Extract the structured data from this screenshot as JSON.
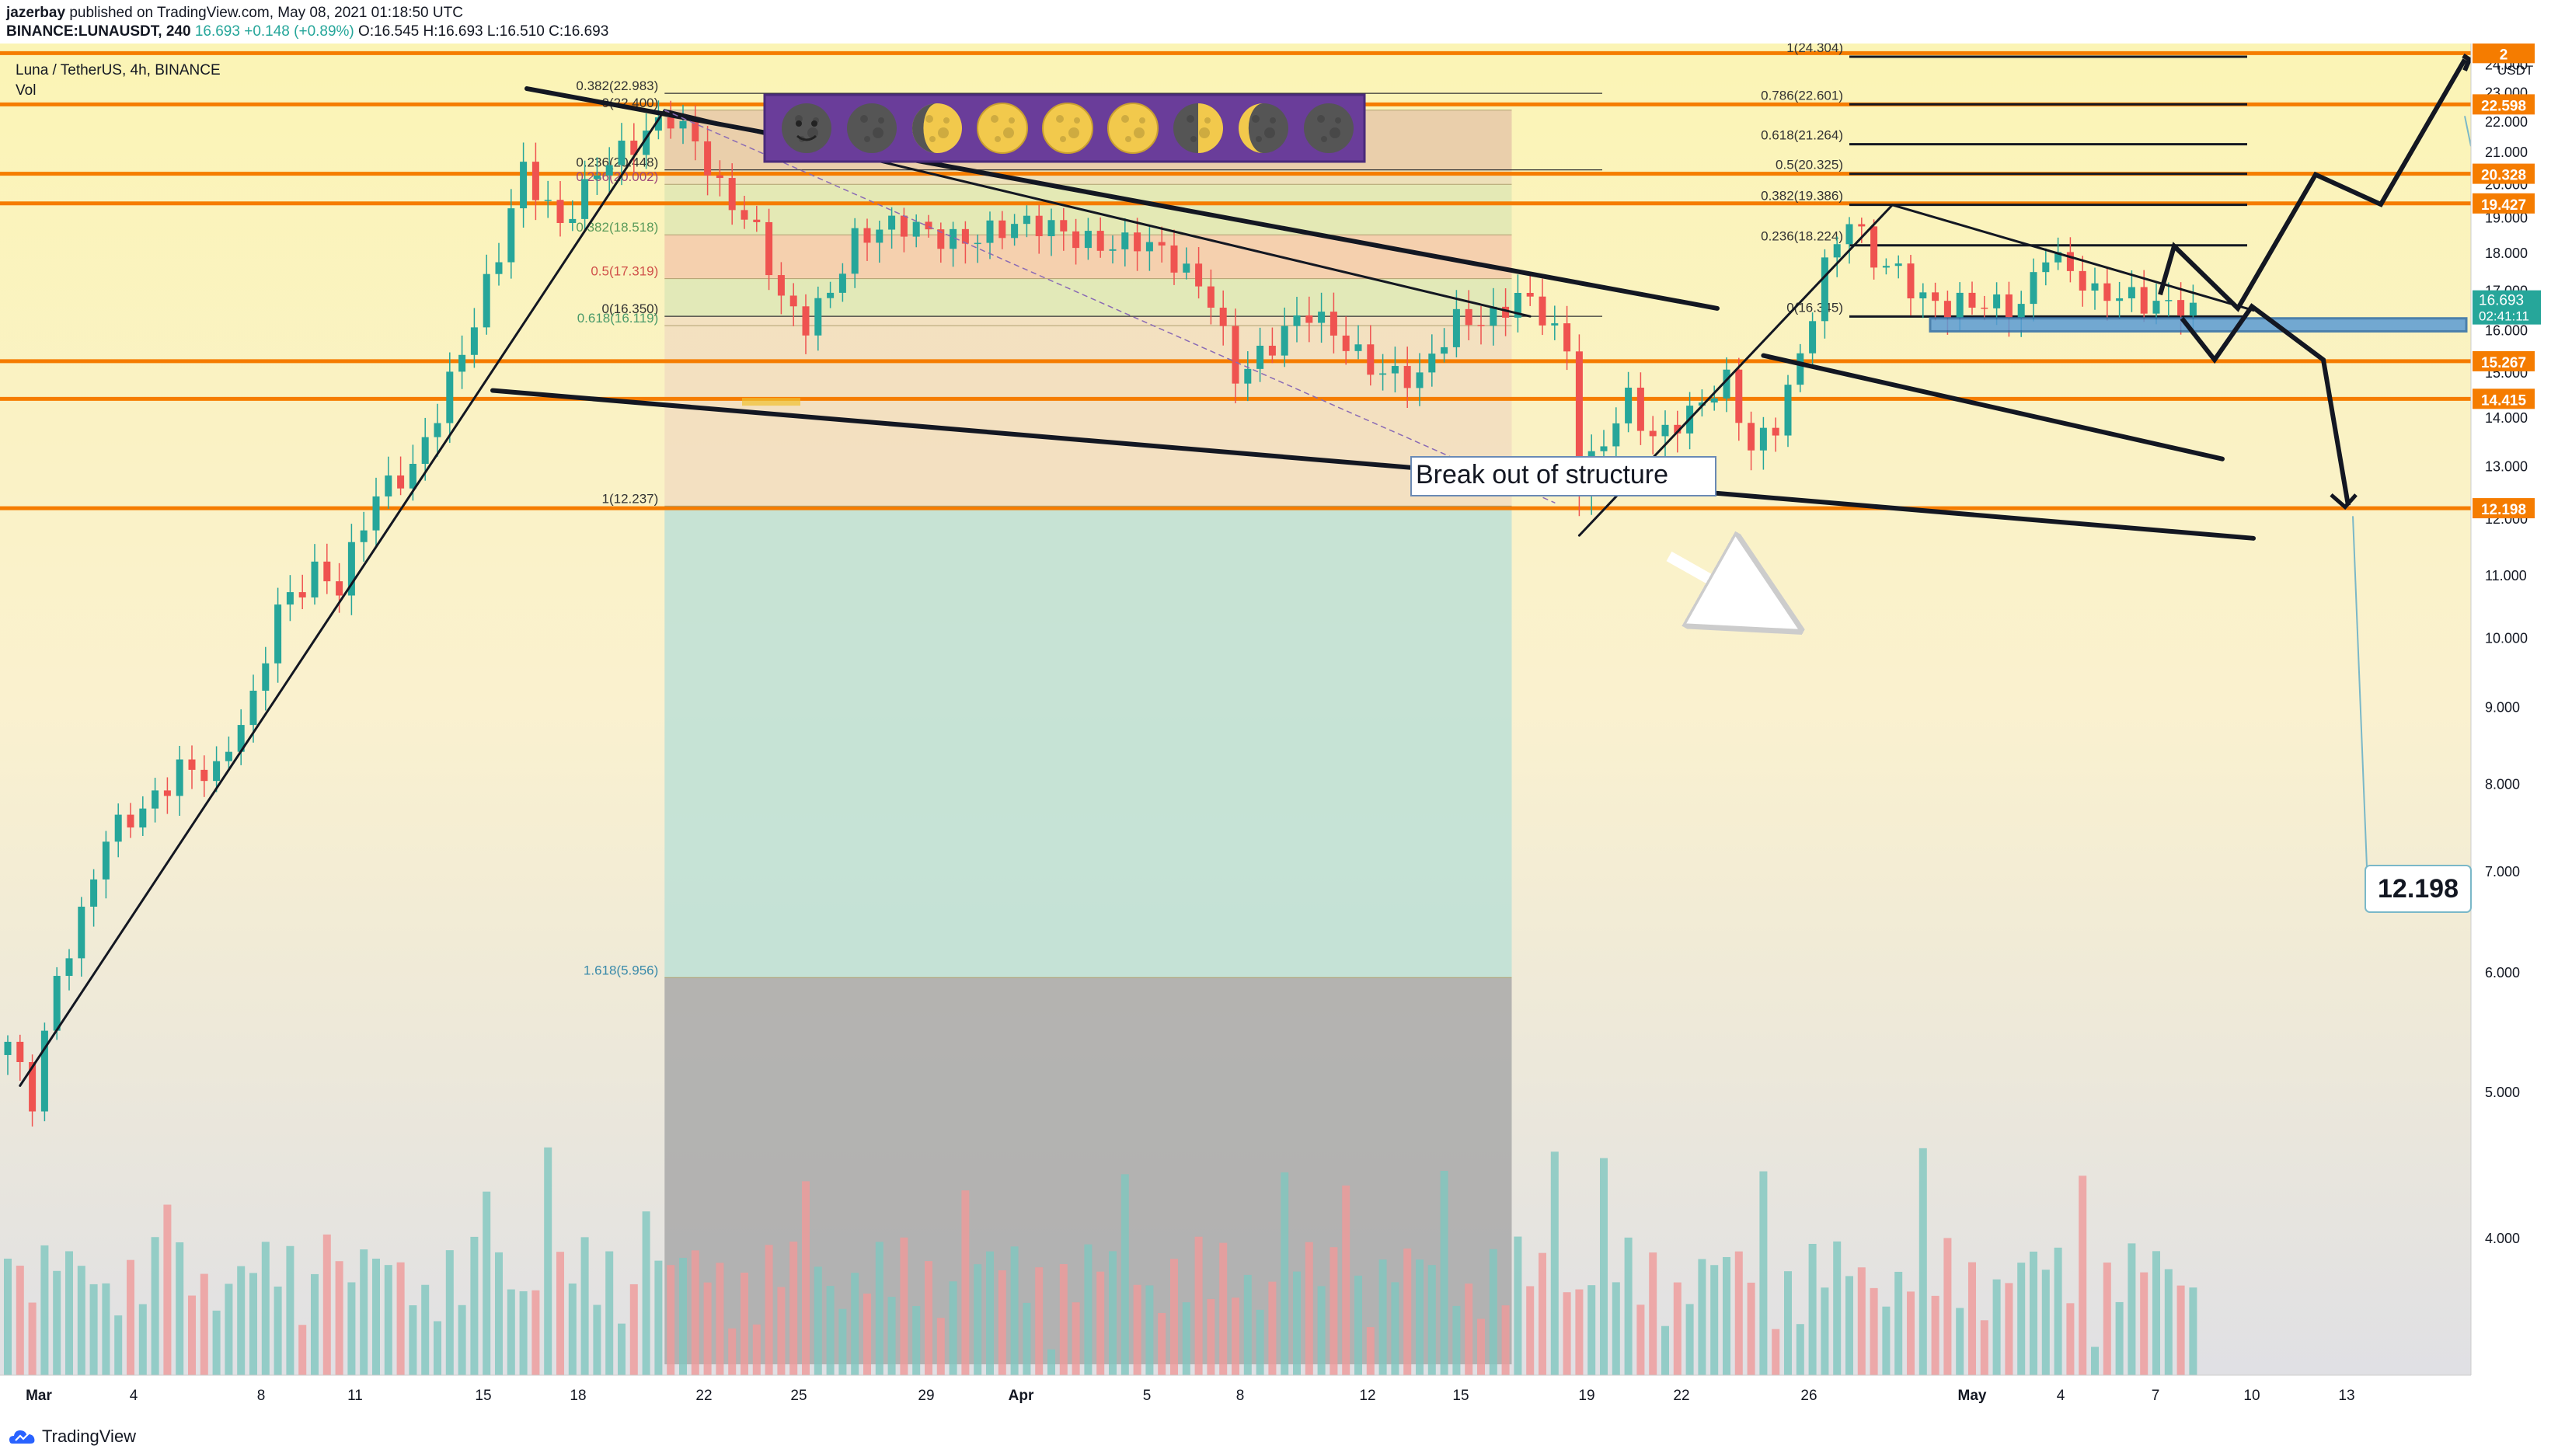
{
  "header": {
    "publisher": "jazerbay",
    "published_text": "published on TradingView.com, May 08, 2021 01:18:50 UTC",
    "symbol_line": "BINANCE:LUNAUSDT, 240",
    "last": "16.693",
    "change": "+0.148 (+0.89%)",
    "ohlc": {
      "o": "O:16.545",
      "h": "H:16.693",
      "l": "L:16.510",
      "c": "C:16.693"
    }
  },
  "legend": {
    "title": "Luna / TetherUS, 4h, BINANCE",
    "vol": "Vol"
  },
  "price_axis": {
    "currency": "USDT",
    "ticks": [
      "24.000",
      "23.000",
      "22.000",
      "21.000",
      "20.000",
      "19.000",
      "18.000",
      "17.000",
      "16.000",
      "15.000",
      "14.000",
      "13.000",
      "12.000",
      "11.000",
      "10.000",
      "9.000",
      "8.000",
      "7.000",
      "6.000",
      "5.000",
      "4.000"
    ],
    "last_price": "16.693",
    "countdown": "02:41:11"
  },
  "time_axis": {
    "ticks": [
      "Mar",
      "4",
      "8",
      "11",
      "15",
      "18",
      "22",
      "25",
      "29",
      "Apr",
      "5",
      "8",
      "12",
      "15",
      "19",
      "22",
      "26",
      "May",
      "4",
      "7",
      "10",
      "13"
    ]
  },
  "levels": [
    {
      "price": 24.44,
      "label": "2"
    },
    {
      "price": 22.598,
      "label": "22.598"
    },
    {
      "price": 20.328,
      "label": "20.328"
    },
    {
      "price": 19.427,
      "label": "19.427"
    },
    {
      "price": 15.267,
      "label": "15.267"
    },
    {
      "price": 14.415,
      "label": "14.415"
    },
    {
      "price": 12.198,
      "label": "12.198"
    }
  ],
  "fib_left": [
    {
      "label": "0.382(22.983)",
      "price": 22.983
    },
    {
      "label": "0(22.400)",
      "price": 22.4
    },
    {
      "label": "0.236(20.448)",
      "price": 20.448
    },
    {
      "label": "0.236(20.002)",
      "price": 20.002
    },
    {
      "label": "0.382(18.518)",
      "price": 18.518
    },
    {
      "label": "0.5(17.319)",
      "price": 17.319
    },
    {
      "label": "0(16.350)",
      "price": 16.35
    },
    {
      "label": "0.618(16.119)",
      "price": 16.119
    },
    {
      "label": "1(12.237)",
      "price": 12.237
    },
    {
      "label": "1.618(5.956)",
      "price": 5.956
    }
  ],
  "fib_right": [
    {
      "label": "1(24.304)",
      "price": 24.304
    },
    {
      "label": "0.786(22.601)",
      "price": 22.601
    },
    {
      "label": "0.618(21.264)",
      "price": 21.264
    },
    {
      "label": "0.5(20.325)",
      "price": 20.325
    },
    {
      "label": "0.382(19.386)",
      "price": 19.386
    },
    {
      "label": "0.236(18.224)",
      "price": 18.224
    },
    {
      "label": "0(16.345)",
      "price": 16.345
    }
  ],
  "annotations": {
    "breakout": "Break out of structure",
    "target": "12.198"
  },
  "moon_icons": [
    "new-moon-face-icon",
    "new-moon-icon",
    "waxing-gibbous-icon",
    "full-moon-icon",
    "full-moon-icon",
    "full-moon-icon",
    "first-quarter-moon-icon",
    "waning-crescent-icon",
    "new-moon-icon"
  ],
  "colors": {
    "level": "#f57c00",
    "up": "#26a69a",
    "down": "#ef5350",
    "banner": "#6a3d9a",
    "zone": "#5b9bd5"
  },
  "footer": {
    "brand": "TradingView"
  },
  "chart_data": {
    "type": "candlestick",
    "symbol": "LUNAUSDT",
    "interval": "4h",
    "ylim": [
      3.3,
      24.8
    ],
    "y_scale": "log",
    "grid": false,
    "price_path": [
      {
        "x": 0,
        "p": 5.4
      },
      {
        "x": 2,
        "p": 5.0
      },
      {
        "x": 4,
        "p": 6.0
      },
      {
        "x": 6,
        "p": 6.5
      },
      {
        "x": 8,
        "p": 7.3
      },
      {
        "x": 11,
        "p": 7.7
      },
      {
        "x": 14,
        "p": 8.3
      },
      {
        "x": 17,
        "p": 8.1
      },
      {
        "x": 20,
        "p": 9.0
      },
      {
        "x": 22,
        "p": 10.5
      },
      {
        "x": 25,
        "p": 11.2
      },
      {
        "x": 27,
        "p": 10.8
      },
      {
        "x": 30,
        "p": 12.3
      },
      {
        "x": 33,
        "p": 13.0
      },
      {
        "x": 35,
        "p": 14.3
      },
      {
        "x": 38,
        "p": 16.2
      },
      {
        "x": 40,
        "p": 17.8
      },
      {
        "x": 42,
        "p": 20.3
      },
      {
        "x": 45,
        "p": 19.0
      },
      {
        "x": 48,
        "p": 20.5
      },
      {
        "x": 51,
        "p": 21.0
      },
      {
        "x": 54,
        "p": 22.2
      },
      {
        "x": 56,
        "p": 21.6
      },
      {
        "x": 58,
        "p": 20.0
      },
      {
        "x": 61,
        "p": 18.4
      },
      {
        "x": 63,
        "p": 16.6
      },
      {
        "x": 65,
        "p": 16.2
      },
      {
        "x": 67,
        "p": 17.2
      },
      {
        "x": 69,
        "p": 18.5
      },
      {
        "x": 72,
        "p": 18.6
      },
      {
        "x": 76,
        "p": 18.5
      },
      {
        "x": 80,
        "p": 18.7
      },
      {
        "x": 84,
        "p": 18.6
      },
      {
        "x": 88,
        "p": 18.5
      },
      {
        "x": 92,
        "p": 18.3
      },
      {
        "x": 95,
        "p": 17.6
      },
      {
        "x": 98,
        "p": 16.9
      },
      {
        "x": 100,
        "p": 15.1
      },
      {
        "x": 103,
        "p": 15.6
      },
      {
        "x": 106,
        "p": 16.3
      },
      {
        "x": 109,
        "p": 15.8
      },
      {
        "x": 112,
        "p": 15.1
      },
      {
        "x": 115,
        "p": 14.7
      },
      {
        "x": 118,
        "p": 16.2
      },
      {
        "x": 121,
        "p": 16.5
      },
      {
        "x": 123,
        "p": 17.0
      },
      {
        "x": 125,
        "p": 16.3
      },
      {
        "x": 127,
        "p": 15.3
      },
      {
        "x": 128,
        "p": 12.5
      },
      {
        "x": 130,
        "p": 13.6
      },
      {
        "x": 132,
        "p": 14.6
      },
      {
        "x": 134,
        "p": 13.6
      },
      {
        "x": 137,
        "p": 13.9
      },
      {
        "x": 140,
        "p": 14.8
      },
      {
        "x": 142,
        "p": 13.5
      },
      {
        "x": 144,
        "p": 14.0
      },
      {
        "x": 146,
        "p": 15.3
      },
      {
        "x": 148,
        "p": 17.4
      },
      {
        "x": 150,
        "p": 18.9
      },
      {
        "x": 152,
        "p": 18.0
      },
      {
        "x": 154,
        "p": 17.7
      },
      {
        "x": 156,
        "p": 16.8
      },
      {
        "x": 158,
        "p": 16.4
      },
      {
        "x": 161,
        "p": 16.6
      },
      {
        "x": 164,
        "p": 16.8
      },
      {
        "x": 166,
        "p": 18.2
      },
      {
        "x": 168,
        "p": 17.4
      },
      {
        "x": 170,
        "p": 16.7
      },
      {
        "x": 173,
        "p": 16.9
      },
      {
        "x": 176,
        "p": 16.8
      },
      {
        "x": 178,
        "p": 16.693
      }
    ]
  }
}
